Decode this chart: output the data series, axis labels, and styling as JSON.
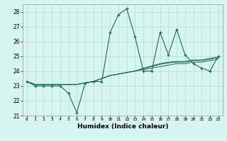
{
  "xlabel": "Humidex (Indice chaleur)",
  "background_color": "#d6f5ef",
  "grid_color": "#b0ddd6",
  "line_color": "#1a6b5a",
  "xlim": [
    -0.5,
    23.5
  ],
  "ylim": [
    21,
    28.5
  ],
  "yticks": [
    21,
    22,
    23,
    24,
    25,
    26,
    27,
    28
  ],
  "xtick_labels": [
    "0",
    "1",
    "2",
    "3",
    "4",
    "5",
    "6",
    "7",
    "8",
    "9",
    "10",
    "11",
    "12",
    "13",
    "14",
    "15",
    "16",
    "17",
    "18",
    "19",
    "20",
    "21",
    "22",
    "23"
  ],
  "series1_x": [
    0,
    1,
    2,
    3,
    4,
    5,
    6,
    7,
    8,
    9,
    10,
    11,
    12,
    13,
    14,
    15,
    16,
    17,
    18,
    19,
    20,
    21,
    22,
    23
  ],
  "series1_y": [
    23.3,
    23.0,
    23.0,
    23.0,
    23.0,
    22.5,
    21.2,
    23.2,
    23.3,
    23.3,
    26.6,
    27.8,
    28.2,
    26.3,
    24.0,
    24.0,
    26.6,
    25.1,
    26.8,
    25.1,
    24.5,
    24.2,
    24.0,
    25.0
  ],
  "series2_x": [
    0,
    1,
    2,
    3,
    4,
    5,
    6,
    7,
    8,
    9,
    10,
    11,
    12,
    13,
    14,
    15,
    16,
    17,
    18,
    19,
    20,
    21,
    22,
    23
  ],
  "series2_y": [
    23.3,
    23.1,
    23.1,
    23.1,
    23.1,
    23.1,
    23.1,
    23.2,
    23.3,
    23.5,
    23.7,
    23.8,
    23.9,
    24.0,
    24.1,
    24.2,
    24.3,
    24.4,
    24.5,
    24.5,
    24.6,
    24.6,
    24.7,
    24.8
  ],
  "series3_y": [
    23.3,
    23.1,
    23.1,
    23.1,
    23.1,
    23.1,
    23.1,
    23.2,
    23.3,
    23.5,
    23.7,
    23.8,
    23.9,
    24.0,
    24.15,
    24.3,
    24.45,
    24.55,
    24.6,
    24.6,
    24.7,
    24.7,
    24.8,
    24.9
  ],
  "series4_y": [
    23.3,
    23.1,
    23.1,
    23.1,
    23.1,
    23.1,
    23.1,
    23.2,
    23.3,
    23.5,
    23.7,
    23.8,
    23.9,
    24.0,
    24.2,
    24.35,
    24.5,
    24.6,
    24.65,
    24.65,
    24.75,
    24.75,
    24.85,
    24.95
  ]
}
